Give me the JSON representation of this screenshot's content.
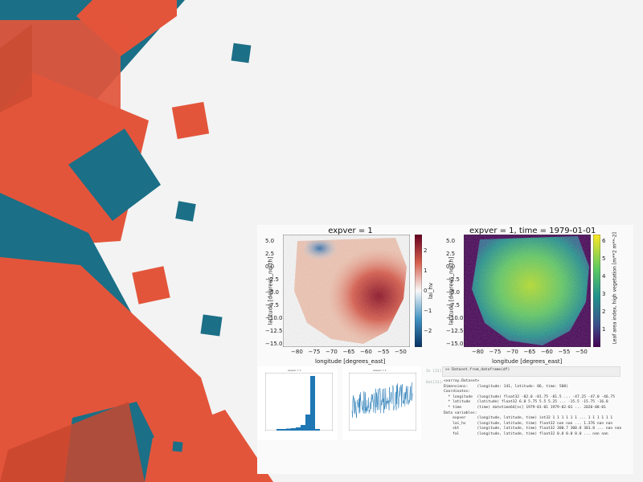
{
  "colors": {
    "teal": "#1b6f86",
    "orange": "#e3553b",
    "dark_orange": "#c8482f",
    "dark_teal": "#14596d"
  },
  "left_map": {
    "title": "expver = 1",
    "xlabel": "longitude [degrees_east]",
    "ylabel": "latitude [degrees_north]",
    "colorbar_label": "lai_hv",
    "xticks": [
      "−80",
      "−75",
      "−70",
      "−65",
      "−60",
      "−55",
      "−50"
    ],
    "yticks": [
      "5.0",
      "2.5",
      "0.0",
      "−2.5",
      "−5.0",
      "−7.5",
      "−10.0",
      "−12.5",
      "−15.0"
    ],
    "cbar_ticks": [
      "2",
      "1",
      "0",
      "−1",
      "−2"
    ],
    "colormap": "RdBu diverging"
  },
  "right_map": {
    "title": "expver = 1, time = 1979-01-01",
    "xlabel": "longitude [degrees_east]",
    "ylabel": "latitude [degrees_north]",
    "colorbar_label": "Leaf area index, high vegetation [m**2 m**-2]",
    "xticks": [
      "−80",
      "−75",
      "−70",
      "−65",
      "−60",
      "−55",
      "−50"
    ],
    "yticks": [
      "5.0",
      "2.5",
      "0.0",
      "−2.5",
      "−5.0",
      "−7.5",
      "−10.0",
      "−12.5",
      "−15.0"
    ],
    "cbar_ticks": [
      "6",
      "5",
      "4",
      "3",
      "2",
      "1"
    ],
    "colormap": "viridis"
  },
  "histogram": {
    "title": "expver = 1"
  },
  "timeseries": {
    "title": "expver = 1"
  },
  "code": {
    "in_prompt": "In [31]:",
    "in_code": ">> Dataset.from_dataframe(df)",
    "out_prompt": "Out[31]:",
    "lines": [
      "<xarray.Dataset>",
      "Dimensions:    (longitude: 141, latitude: 86, time: 508)",
      "Coordinates:",
      "  * longitude  (longitude) float32 -82.0 -81.75 -81.5 ... -47.25 -47.0 -46.75",
      "  * latitude   (latitude) float32 6.0 5.75 5.5 5.25 ... -15.5 -15.75 -16.0",
      "  * time       (time) datetime64[ns] 1979-01-01 1979-02-01 ... 2020-08-01",
      "Data variables:",
      "    expver     (longitude, latitude, time) int32 1 1 1 1 1 1 ... 1 1 1 1 1 1",
      "    lai_hv     (longitude, latitude, time) float32 nan nan ... 1.376 nan nan",
      "    skt        (longitude, latitude, time) float32 300.7 300.8 301.8 ... nan nan",
      "    fal        (longitude, latitude, time) float32 0.0 0.0 0.0 ... nan nan"
    ]
  }
}
